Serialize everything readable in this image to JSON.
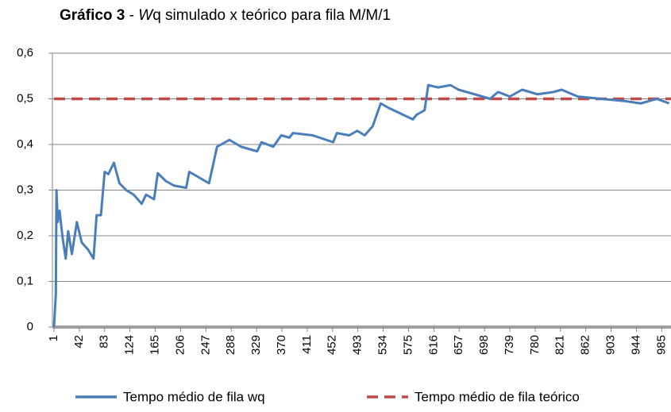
{
  "chart_data": {
    "type": "line",
    "title_parts": [
      "Gráfico 3",
      " - ",
      "W",
      "q simulado x teórico para fila M/M/1"
    ],
    "xlim": [
      1,
      1000
    ],
    "xticks": [
      1,
      42,
      83,
      124,
      165,
      206,
      247,
      288,
      329,
      370,
      411,
      452,
      493,
      534,
      575,
      616,
      657,
      698,
      739,
      780,
      821,
      862,
      903,
      944,
      985
    ],
    "ylim": [
      0,
      0.6
    ],
    "yticks": [
      0,
      {
        "value": 0.1,
        "label": "0,1"
      },
      {
        "value": 0.2,
        "label": "0,2"
      },
      {
        "value": 0.3,
        "label": "0,3"
      },
      {
        "value": 0.4,
        "label": "0,4"
      },
      {
        "value": 0.5,
        "label": "0,5"
      },
      {
        "value": 0.6,
        "label": "0,6"
      }
    ],
    "grid": true,
    "legend": "bottom",
    "series": [
      {
        "name": "Tempo médio de fila wq",
        "color": "#4a7ebb",
        "dash": false,
        "x": [
          1,
          4,
          5,
          7,
          10,
          15,
          20,
          24,
          30,
          38,
          46,
          56,
          65,
          70,
          77,
          83,
          89,
          98,
          107,
          118,
          130,
          143,
          150,
          163,
          169,
          182,
          195,
          215,
          220,
          233,
          252,
          265,
          285,
          304,
          330,
          337,
          356,
          369,
          382,
          388,
          420,
          453,
          459,
          479,
          492,
          504,
          517,
          530,
          543,
          582,
          588,
          601,
          607,
          623,
          643,
          656,
          682,
          707,
          720,
          739,
          759,
          784,
          810,
          823,
          849,
          887,
          926,
          951,
          977,
          997
        ],
        "values": [
          0,
          0.073,
          0.3,
          0.23,
          0.255,
          0.195,
          0.15,
          0.21,
          0.16,
          0.23,
          0.185,
          0.17,
          0.15,
          0.245,
          0.245,
          0.34,
          0.335,
          0.36,
          0.315,
          0.3,
          0.29,
          0.27,
          0.29,
          0.28,
          0.337,
          0.32,
          0.31,
          0.305,
          0.34,
          0.33,
          0.315,
          0.395,
          0.41,
          0.395,
          0.385,
          0.405,
          0.395,
          0.42,
          0.415,
          0.425,
          0.42,
          0.405,
          0.425,
          0.42,
          0.43,
          0.42,
          0.44,
          0.49,
          0.48,
          0.455,
          0.465,
          0.475,
          0.53,
          0.525,
          0.53,
          0.52,
          0.51,
          0.5,
          0.515,
          0.505,
          0.52,
          0.51,
          0.515,
          0.52,
          0.505,
          0.5,
          0.495,
          0.49,
          0.5,
          0.49
        ]
      },
      {
        "name": "Tempo médio de fila teórico",
        "color": "#be4b48",
        "dash": true,
        "x": [
          1,
          1000
        ],
        "values": [
          0.5,
          0.5
        ]
      }
    ]
  }
}
